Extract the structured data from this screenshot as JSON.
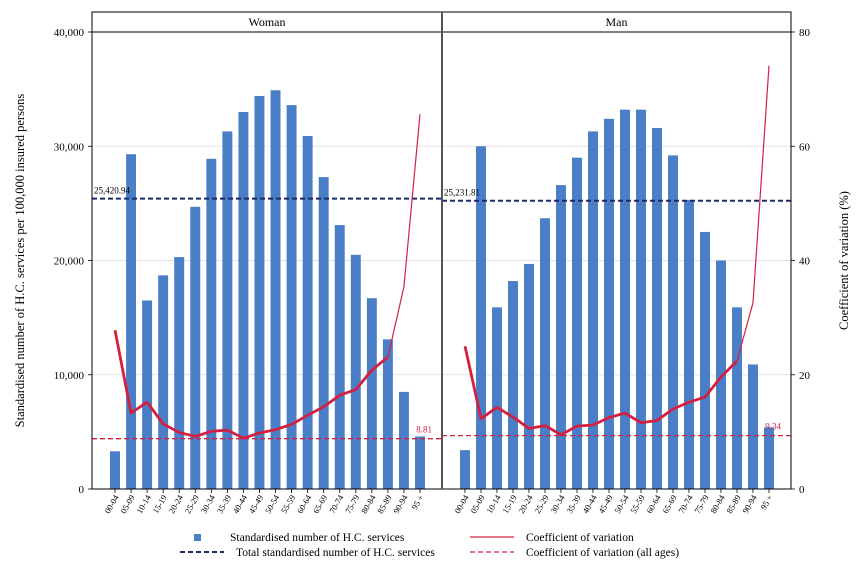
{
  "chart_data": {
    "type": "bar",
    "categories": [
      "00-04",
      "05-09",
      "10-14",
      "15-19",
      "20-24",
      "25-29",
      "30-34",
      "35-39",
      "40-44",
      "45-49",
      "50-54",
      "55-59",
      "60-64",
      "65-69",
      "70-74",
      "75-79",
      "80-84",
      "85-89",
      "90-94",
      "95 +"
    ],
    "y_left": {
      "label": "Standardised number of H.C. services per 100,000 insured persons",
      "range": [
        0,
        40000
      ],
      "ticks": [
        0,
        10000,
        20000,
        30000,
        40000
      ],
      "tick_labels": [
        "0",
        "10,000",
        "20,000",
        "30,000",
        "40,000"
      ]
    },
    "y_right": {
      "label": "Coefficient of variation (%)",
      "range": [
        0,
        80
      ],
      "ticks": [
        0,
        20,
        40,
        60,
        80
      ],
      "tick_labels": [
        "0",
        "20",
        "40",
        "60",
        "80"
      ]
    },
    "grid": true,
    "legend_position": "bottom",
    "colors": {
      "bars": "#4A7EC7",
      "cv_line": "#D42040",
      "total_line": "#1A2A6C",
      "cv_all_line": "#D42040"
    },
    "panels": [
      {
        "title": "Woman",
        "bars": [
          3300,
          29300,
          16500,
          18700,
          20300,
          24700,
          28900,
          31300,
          33000,
          34400,
          34900,
          33600,
          30900,
          27300,
          23100,
          20500,
          16700,
          13100,
          8500,
          4600
        ],
        "cv": [
          27.8,
          13.3,
          15.2,
          11.4,
          9.9,
          9.2,
          10.1,
          10.3,
          8.9,
          9.8,
          10.4,
          11.3,
          12.9,
          14.4,
          16.4,
          17.4,
          20.8,
          23.1,
          35.4,
          65.6
        ],
        "total": 25420.94,
        "total_label": "25,420.94",
        "cv_all": 8.81,
        "cv_all_label": "8.81"
      },
      {
        "title": "Man",
        "bars": [
          3400,
          30000,
          15900,
          18200,
          19700,
          23700,
          26600,
          29000,
          31300,
          32400,
          33200,
          33200,
          31600,
          29200,
          25300,
          22500,
          20000,
          15900,
          10900,
          5400
        ],
        "cv": [
          25.0,
          12.3,
          14.3,
          12.6,
          10.6,
          11.1,
          9.5,
          11.0,
          11.2,
          12.5,
          13.3,
          11.6,
          12.0,
          14.0,
          15.2,
          16.1,
          19.6,
          22.4,
          32.6,
          74.1
        ],
        "total": 25231.81,
        "total_label": "25,231.81",
        "cv_all": 9.34,
        "cv_all_label": "9.34"
      }
    ],
    "legend": [
      {
        "key": "bars",
        "label": "Standardised number of H.C. services"
      },
      {
        "key": "cv_line",
        "label": "Coefficient of variation"
      },
      {
        "key": "total_line",
        "label": "Total standardised number of H.C. services"
      },
      {
        "key": "cv_all_line",
        "label": "Coefficient of variation (all ages)"
      }
    ]
  }
}
